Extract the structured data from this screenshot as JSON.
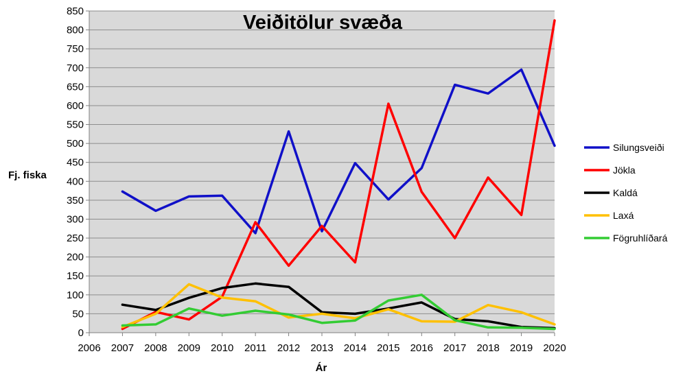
{
  "chart_data": {
    "type": "line",
    "title": "Veiðitölur svæða",
    "xlabel": "Ár",
    "ylabel": "Fj. fiska",
    "x": [
      2006,
      2007,
      2008,
      2009,
      2010,
      2011,
      2012,
      2013,
      2014,
      2015,
      2016,
      2017,
      2018,
      2019,
      2020
    ],
    "xticks": [
      "2006",
      "2007",
      "2008",
      "2009",
      "2010",
      "2011",
      "2012",
      "2013",
      "2014",
      "2015",
      "2016",
      "2017",
      "2018",
      "2019",
      "2020"
    ],
    "yticks": [
      "0",
      "50",
      "100",
      "150",
      "200",
      "250",
      "300",
      "350",
      "400",
      "450",
      "500",
      "550",
      "600",
      "650",
      "700",
      "750",
      "800",
      "850"
    ],
    "ylim": [
      0,
      850
    ],
    "grid": true,
    "legend_position": "right",
    "series": [
      {
        "name": "Silungsveiði",
        "color": "#1010c8",
        "x": [
          2007,
          2008,
          2009,
          2010,
          2011,
          2012,
          2013,
          2014,
          2015,
          2016,
          2017,
          2018,
          2019,
          2020
        ],
        "values": [
          373,
          322,
          360,
          362,
          263,
          532,
          268,
          448,
          352,
          435,
          655,
          632,
          695,
          494
        ]
      },
      {
        "name": "Jökla",
        "color": "#ff0000",
        "x": [
          2007,
          2008,
          2009,
          2010,
          2011,
          2012,
          2013,
          2014,
          2015,
          2016,
          2017,
          2018,
          2019,
          2020
        ],
        "values": [
          10,
          55,
          35,
          95,
          292,
          177,
          282,
          186,
          605,
          372,
          250,
          410,
          311,
          825
        ]
      },
      {
        "name": "Kaldá",
        "color": "#000000",
        "x": [
          2007,
          2008,
          2009,
          2010,
          2011,
          2012,
          2013,
          2014,
          2015,
          2016,
          2017,
          2018,
          2019,
          2020
        ],
        "values": [
          74,
          60,
          92,
          118,
          130,
          121,
          54,
          50,
          64,
          80,
          36,
          30,
          15,
          12
        ]
      },
      {
        "name": "Laxá",
        "color": "#ffc000",
        "x": [
          2007,
          2008,
          2009,
          2010,
          2011,
          2012,
          2013,
          2014,
          2015,
          2016,
          2017,
          2018,
          2019,
          2020
        ],
        "values": [
          15,
          50,
          128,
          93,
          83,
          40,
          50,
          38,
          62,
          30,
          29,
          73,
          54,
          22
        ]
      },
      {
        "name": "Fögruhlíðará",
        "color": "#33cc33",
        "x": [
          2007,
          2008,
          2009,
          2010,
          2011,
          2012,
          2013,
          2014,
          2015,
          2016,
          2017,
          2018,
          2019,
          2020
        ],
        "values": [
          19,
          22,
          64,
          45,
          58,
          48,
          26,
          32,
          85,
          100,
          33,
          14,
          13,
          10
        ]
      }
    ]
  }
}
